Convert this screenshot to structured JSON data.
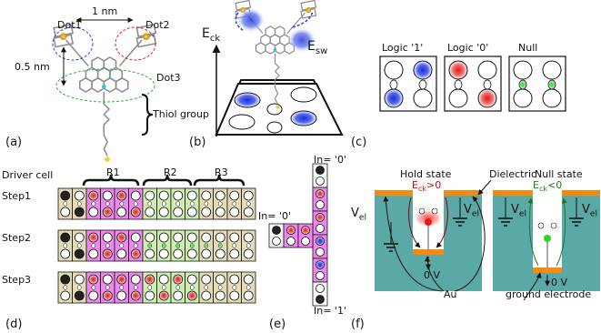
{
  "panels": {
    "a": {
      "label": "(a)",
      "dot1": "Dot1",
      "dot2": "Dot2",
      "dot3": "Dot3",
      "width": "1 nm",
      "height": "0.5 nm",
      "thiol": "Thiol group"
    },
    "b": {
      "label": "(b)",
      "eck": "E",
      "eck_sub": "ck",
      "esw": "E",
      "esw_sub": "sw"
    },
    "c": {
      "label": "(c)",
      "cells": [
        {
          "title": "Logic '1'",
          "state": "logic1"
        },
        {
          "title": "Logic '0'",
          "state": "logic0"
        },
        {
          "title": "Null",
          "state": "null"
        }
      ]
    },
    "d": {
      "label": "(d)",
      "driver": "Driver cell",
      "regions": [
        "R1",
        "R2",
        "R3"
      ],
      "steps": [
        "Step1",
        "Step2",
        "Step3"
      ]
    },
    "e": {
      "label": "(e)",
      "in_top": "In= '0'",
      "in_left": "In= '0'",
      "in_bottom": "In= '1'"
    },
    "f": {
      "label": "(f)",
      "hold": "Hold state",
      "hold_field": "E",
      "hold_field_sub": "ck",
      "hold_cond": ">0",
      "dielectric": "Dielectric",
      "null_state": "Null state",
      "null_field": "E",
      "null_field_sub": "ck",
      "null_cond": "<0",
      "vel": "V",
      "vel_sub": "el",
      "zero": "0 V",
      "au": "Au",
      "ground": "ground electrode"
    }
  },
  "colors": {
    "blue": "#1a2fd6",
    "red": "#e01b1b",
    "green": "#2bd52b",
    "pink": "#ee88ee",
    "lightgreen": "#cdeeb0",
    "tan": "#e3dcb4",
    "teal": "#5aa9a6",
    "orange": "#f58a12",
    "brace": "#111111"
  }
}
